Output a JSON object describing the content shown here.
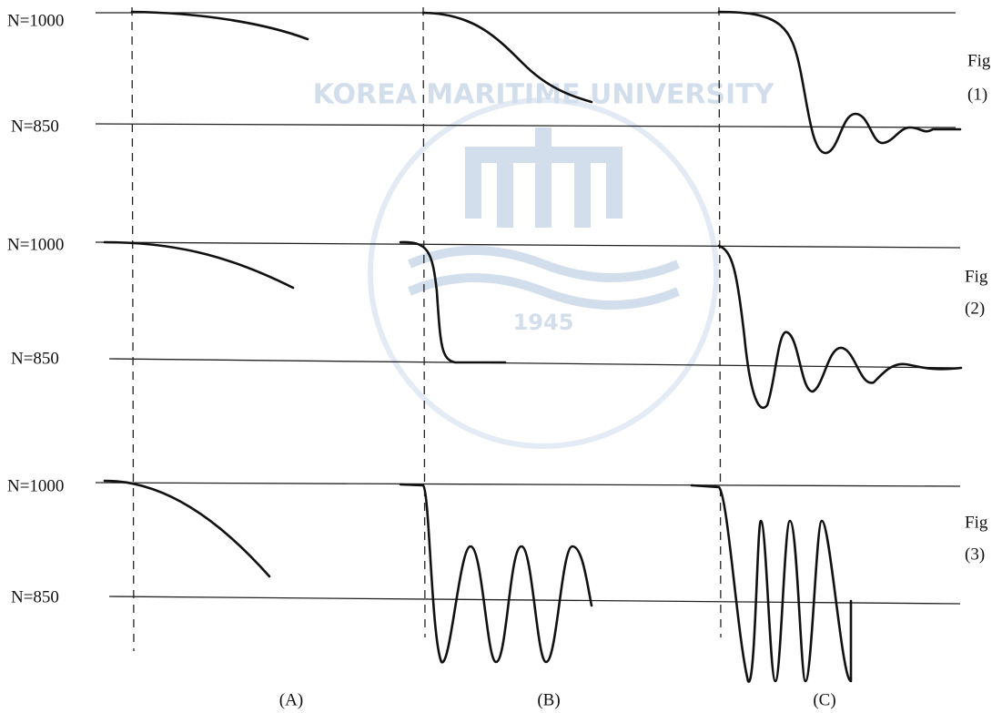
{
  "rows": [
    {
      "upper": "N=1000",
      "lower": "N=850",
      "fig": "Fig",
      "fig_number": "(1)"
    },
    {
      "upper": "N=1000",
      "lower": "N=850",
      "fig": "Fig",
      "fig_number": "(2)"
    },
    {
      "upper": "N=1000",
      "lower": "N=850",
      "fig": "Fig",
      "fig_number": "(3)"
    }
  ],
  "columns": [
    "(A)",
    "(B)",
    "(C)"
  ],
  "watermark": {
    "name": "KOREA MARITIME UNIVERSITY",
    "year": "1945"
  }
}
